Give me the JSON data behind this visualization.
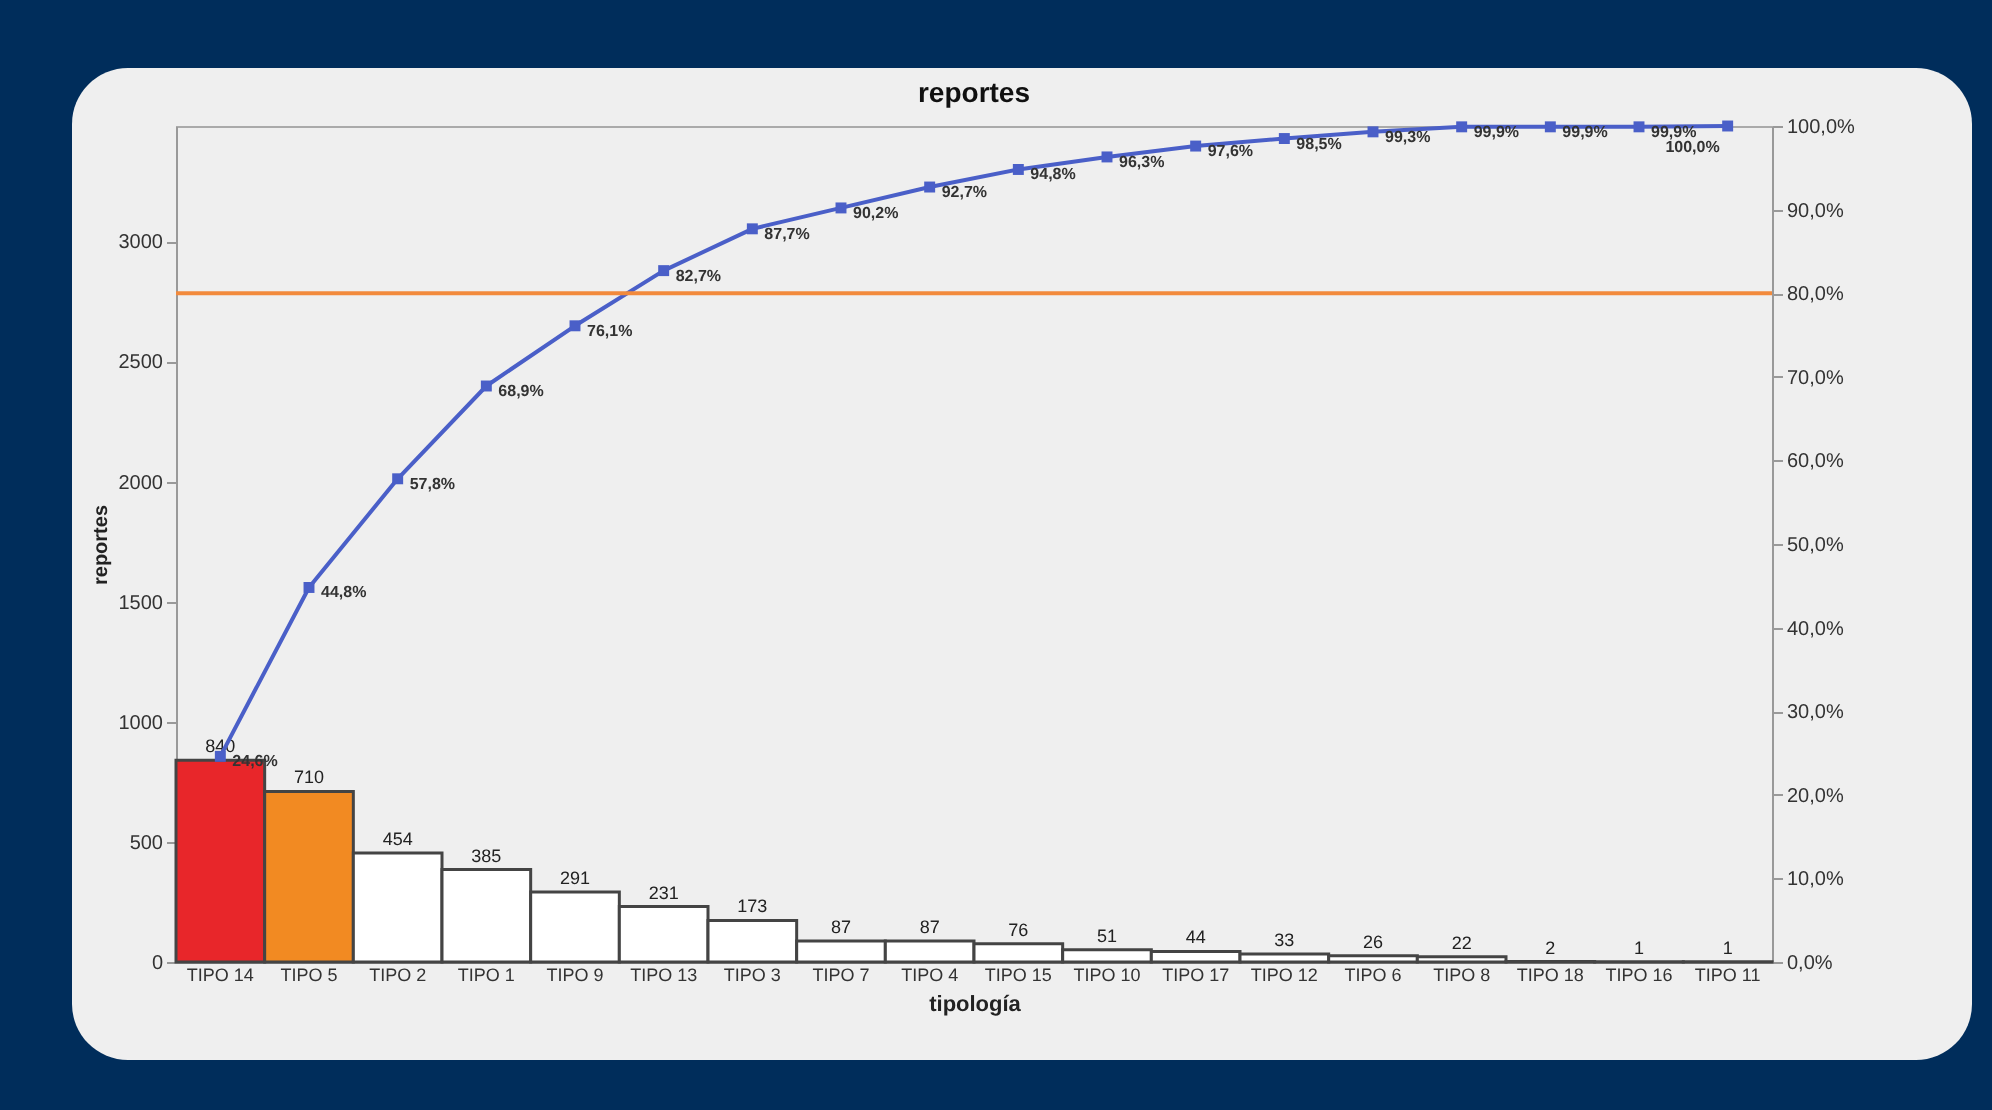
{
  "chart_data": {
    "type": "bar",
    "title": "reportes",
    "xlabel": "tipología",
    "ylabel": "reportes",
    "categories": [
      "TIPO 14",
      "TIPO 5",
      "TIPO 2",
      "TIPO 1",
      "TIPO 9",
      "TIPO 13",
      "TIPO 3",
      "TIPO 7",
      "TIPO 4",
      "TIPO 15",
      "TIPO 10",
      "TIPO 17",
      "TIPO 12",
      "TIPO 6",
      "TIPO 8",
      "TIPO 18",
      "TIPO 16",
      "TIPO 11"
    ],
    "series": [
      {
        "type": "bar",
        "values": [
          840,
          710,
          454,
          385,
          291,
          231,
          173,
          87,
          87,
          76,
          51,
          44,
          33,
          26,
          22,
          2,
          1,
          1
        ],
        "colors": [
          "#e8262a",
          "#f28a22",
          "#ffffff",
          "#ffffff",
          "#ffffff",
          "#ffffff",
          "#ffffff",
          "#ffffff",
          "#ffffff",
          "#ffffff",
          "#ffffff",
          "#ffffff",
          "#ffffff",
          "#ffffff",
          "#ffffff",
          "#ffffff",
          "#ffffff",
          "#ffffff"
        ]
      },
      {
        "type": "line",
        "axis": "y2",
        "color": "#4a5fc8",
        "values": [
          24.6,
          44.8,
          57.8,
          68.9,
          76.1,
          82.7,
          87.7,
          90.2,
          92.7,
          94.8,
          96.3,
          97.6,
          98.5,
          99.3,
          99.9,
          99.9,
          99.9,
          100.0
        ],
        "value_labels": [
          "24,6%",
          "44,8%",
          "57,8%",
          "68,9%",
          "76,1%",
          "82,7%",
          "87,7%",
          "90,2%",
          "92,7%",
          "94,8%",
          "96,3%",
          "97,6%",
          "98,5%",
          "99,3%",
          "99,9%",
          "99,9%",
          "99,9%",
          "100,0%"
        ]
      }
    ],
    "data_labels": true,
    "marker": "square",
    "grid": false,
    "ylim": [
      0,
      3480
    ],
    "yticks": [
      0,
      500,
      1000,
      1500,
      2000,
      2500,
      3000
    ],
    "y2lim": [
      0,
      100
    ],
    "y2ticks": [
      {
        "value": 0,
        "label": "0,0%"
      },
      {
        "value": 10,
        "label": "10,0%"
      },
      {
        "value": 20,
        "label": "20,0%"
      },
      {
        "value": 30,
        "label": "30,0%"
      },
      {
        "value": 40,
        "label": "40,0%"
      },
      {
        "value": 50,
        "label": "50,0%"
      },
      {
        "value": 60,
        "label": "60,0%"
      },
      {
        "value": 70,
        "label": "70,0%"
      },
      {
        "value": 80,
        "label": "80,0%"
      },
      {
        "value": 90,
        "label": "90,0%"
      },
      {
        "value": 100,
        "label": "100,0%"
      }
    ],
    "ref_lines": [
      {
        "axis": "y2",
        "value": 80,
        "label": null,
        "color": "#f28a3c"
      }
    ]
  }
}
